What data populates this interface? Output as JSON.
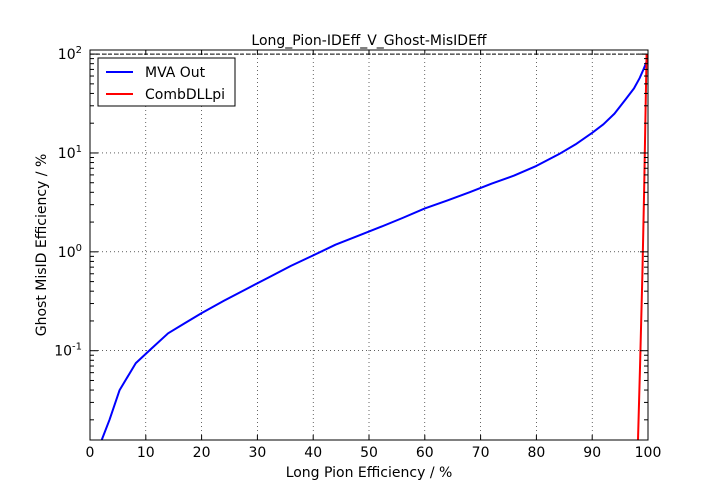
{
  "chart_data": {
    "type": "line",
    "title": "Long_Pion-IDEff_V_Ghost-MisIDEff",
    "xlabel": "Long Pion Efficiency / %",
    "ylabel": "Ghost MisID Efficiency / %",
    "xlim": [
      0,
      100
    ],
    "ylim": [
      0.0125,
      110
    ],
    "yscale": "log",
    "grid": true,
    "legend_position": "top-left",
    "xticks": [
      0,
      10,
      20,
      30,
      40,
      50,
      60,
      70,
      80,
      90,
      100
    ],
    "yticks": [
      {
        "value": 0.1,
        "base": "10",
        "exp": "-1"
      },
      {
        "value": 1,
        "base": "10",
        "exp": "0"
      },
      {
        "value": 10,
        "base": "10",
        "exp": "1"
      },
      {
        "value": 100,
        "base": "10",
        "exp": "2"
      }
    ],
    "series": [
      {
        "name": "MVA Out",
        "color": "#0000ff",
        "x": [
          2.1,
          3.5,
          5.3,
          8.2,
          11,
          14,
          17,
          20,
          24,
          28,
          32,
          36,
          40,
          44,
          48,
          52,
          56,
          60,
          64,
          68,
          72,
          76,
          80,
          84,
          87,
          90,
          92,
          94,
          96,
          97.5,
          98.5,
          99.2,
          99.6,
          100
        ],
        "y": [
          0.0125,
          0.02,
          0.04,
          0.075,
          0.105,
          0.15,
          0.19,
          0.24,
          0.32,
          0.42,
          0.55,
          0.72,
          0.92,
          1.18,
          1.45,
          1.78,
          2.2,
          2.75,
          3.3,
          4.0,
          4.9,
          5.9,
          7.4,
          9.7,
          12.2,
          16,
          19.5,
          25,
          35,
          45,
          57,
          70,
          80,
          90
        ]
      },
      {
        "name": "CombDLLpi",
        "color": "#ff0000",
        "x": [
          98.2,
          98.6,
          99.0,
          99.3,
          99.55,
          99.75
        ],
        "y": [
          0.0125,
          0.08,
          0.6,
          4,
          25,
          100
        ]
      }
    ],
    "reference_line": {
      "y": 100
    }
  }
}
